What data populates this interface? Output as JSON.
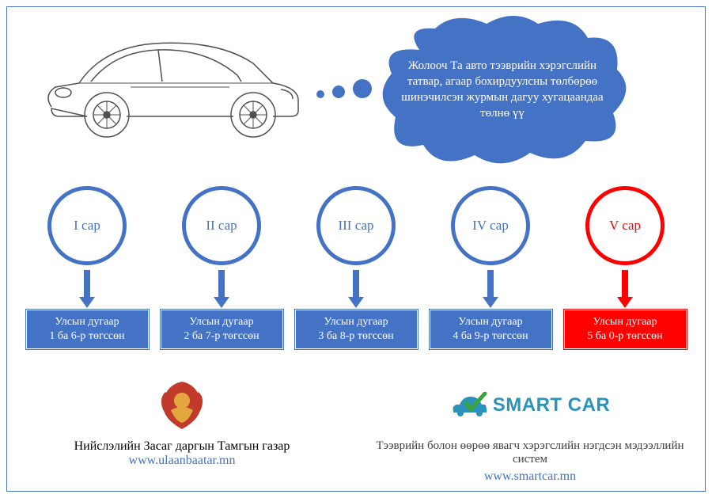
{
  "colors": {
    "frame_border": "#4472c4",
    "cloud_fill": "#4472c4",
    "circle_border_normal": "#4472c4",
    "circle_text_normal": "#4472c4",
    "arrow_normal": "#4472c4",
    "plate_normal_bg": "#4472c4",
    "circle_border_highlight": "#ff0000",
    "circle_text_highlight": "#ff0000",
    "arrow_highlight": "#ff0000",
    "plate_highlight_bg": "#ff0000",
    "link": "#4472c4",
    "dot": "#4472c4",
    "smartcar_text": "#2b93b9",
    "check": "#3aa43a",
    "emblem1": "#c23a2b",
    "emblem2": "#e4a63f"
  },
  "cloud_text": "Жолооч Та авто тээврийн хэрэгслийн татвар, агаар бохирдуулсны төлбөрөө шинэчилсэн журмын дагуу хугацаандаа төлнө үү",
  "months": [
    {
      "label": "I сар",
      "plate_line1": "Улсын дугаар",
      "plate_line2": "1 ба 6-р төгссөн",
      "highlight": false
    },
    {
      "label": "II сар",
      "plate_line1": "Улсын дугаар",
      "plate_line2": "2 ба 7-р төгссөн",
      "highlight": false
    },
    {
      "label": "III сар",
      "plate_line1": "Улсын дугаар",
      "plate_line2": "3 ба 8-р төгссөн",
      "highlight": false
    },
    {
      "label": "IV сар",
      "plate_line1": "Улсын дугаар",
      "plate_line2": "4 ба 9-р төгссөн",
      "highlight": false
    },
    {
      "label": "V сар",
      "plate_line1": "Улсын дугаар",
      "plate_line2": "5 ба 0-р төгссөн",
      "highlight": true
    }
  ],
  "footer_left": {
    "title": "Нийслэлийн Засаг даргын Тамгын газар",
    "url": "www.ulaanbaatar.mn"
  },
  "footer_right": {
    "brand": "SMART CAR",
    "subtitle": "Тээврийн болон өөрөө явагч хэрэгслийн нэгдсэн мэдээллийн систем",
    "url": "www.smartcar.mn"
  }
}
